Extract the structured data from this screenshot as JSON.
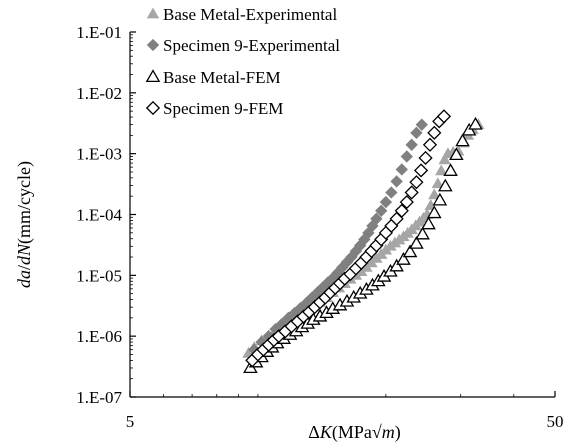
{
  "chart_data": {
    "type": "scatter",
    "title": "",
    "xlabel_parts": [
      "Δ",
      "K",
      "(MPa√",
      "m",
      ")"
    ],
    "ylabel_parts": [
      "da",
      "/",
      "dN",
      "(mm/cycle)"
    ],
    "x_scale": "log",
    "y_scale": "log",
    "xlim": [
      5,
      50
    ],
    "ylim": [
      1e-07,
      0.1
    ],
    "x_tick_values": [
      5,
      50
    ],
    "x_tick_labels": [
      "5",
      "50"
    ],
    "y_tick_values": [
      1e-07,
      1e-06,
      1e-05,
      0.0001,
      0.001,
      0.01,
      0.1
    ],
    "y_tick_labels": [
      "1.E-07",
      "1.E-06",
      "1.E-05",
      "1.E-04",
      "1.E-03",
      "1.E-02",
      "1.E-01"
    ],
    "grid": false,
    "legend_position": "top-left",
    "series": [
      {
        "name": "Base Metal-Experimental",
        "marker": "triangle-filled",
        "color": "#A6A6A6",
        "points": [
          [
            9.5,
            5.2e-07
          ],
          [
            9.8,
            6.5e-07
          ],
          [
            10.2,
            8.4e-07
          ],
          [
            10.6,
            1e-06
          ],
          [
            11.0,
            1.25e-06
          ],
          [
            11.5,
            1.5e-06
          ],
          [
            12.0,
            1.8e-06
          ],
          [
            12.5,
            2.1e-06
          ],
          [
            13.0,
            2.5e-06
          ],
          [
            13.5,
            3e-06
          ],
          [
            14.0,
            3.6e-06
          ],
          [
            14.5,
            4.3e-06
          ],
          [
            15.0,
            5.2e-06
          ],
          [
            15.5,
            6.2e-06
          ],
          [
            16.0,
            7.3e-06
          ],
          [
            16.5,
            8.6e-06
          ],
          [
            17.0,
            1e-05
          ],
          [
            17.5,
            1.15e-05
          ],
          [
            18.0,
            1.35e-05
          ],
          [
            18.5,
            1.6e-05
          ],
          [
            19.0,
            1.9e-05
          ],
          [
            19.5,
            2.2e-05
          ],
          [
            20.0,
            2.6e-05
          ],
          [
            20.5,
            3e-05
          ],
          [
            21.0,
            3.4e-05
          ],
          [
            21.5,
            3.8e-05
          ],
          [
            22.0,
            4.3e-05
          ],
          [
            22.5,
            4.9e-05
          ],
          [
            23.0,
            5.6e-05
          ],
          [
            23.5,
            6.5e-05
          ],
          [
            24.0,
            7.5e-05
          ],
          [
            24.5,
            8.6e-05
          ],
          [
            25.0,
            0.0001
          ],
          [
            25.5,
            0.00014
          ],
          [
            26.0,
            0.00021
          ],
          [
            26.5,
            0.00032
          ],
          [
            27.0,
            0.00052
          ],
          [
            27.5,
            0.00079
          ],
          [
            28.0,
            0.001
          ],
          [
            28.8,
            0.00105
          ],
          [
            29.6,
            0.0011
          ],
          [
            30.4,
            0.0015
          ],
          [
            31.2,
            0.002
          ],
          [
            32.0,
            0.0025
          ],
          [
            33.0,
            0.003
          ]
        ]
      },
      {
        "name": "Specimen 9-Experimental",
        "marker": "diamond-filled",
        "color": "#808080",
        "points": [
          [
            9.8,
            6e-07
          ],
          [
            10.2,
            8e-07
          ],
          [
            10.6,
            1e-06
          ],
          [
            11.0,
            1.3e-06
          ],
          [
            11.4,
            1.6e-06
          ],
          [
            11.8,
            2e-06
          ],
          [
            12.2,
            2.4e-06
          ],
          [
            12.6,
            2.9e-06
          ],
          [
            13.0,
            3.5e-06
          ],
          [
            13.4,
            4.3e-06
          ],
          [
            13.8,
            5.2e-06
          ],
          [
            14.2,
            6.3e-06
          ],
          [
            14.6,
            7.6e-06
          ],
          [
            15.0,
            9e-06
          ],
          [
            15.4,
            1.1e-05
          ],
          [
            15.8,
            1.35e-05
          ],
          [
            16.2,
            1.65e-05
          ],
          [
            16.6,
            2e-05
          ],
          [
            17.0,
            2.5e-05
          ],
          [
            17.4,
            3.1e-05
          ],
          [
            17.8,
            3.9e-05
          ],
          [
            18.2,
            5e-05
          ],
          [
            18.6,
            6.5e-05
          ],
          [
            19.0,
            8.5e-05
          ],
          [
            19.5,
            0.000115
          ],
          [
            20.0,
            0.00016
          ],
          [
            20.6,
            0.00023
          ],
          [
            21.2,
            0.00035
          ],
          [
            21.8,
            0.00055
          ],
          [
            22.4,
            0.0009
          ],
          [
            23.0,
            0.0014
          ],
          [
            23.6,
            0.0022
          ],
          [
            24.3,
            0.003
          ]
        ]
      },
      {
        "name": "Base Metal-FEM",
        "marker": "triangle-open",
        "color": "#000000",
        "points": [
          [
            9.6,
            3e-07
          ],
          [
            9.9,
            3.7e-07
          ],
          [
            10.2,
            4.5e-07
          ],
          [
            10.5,
            5.5e-07
          ],
          [
            10.8,
            6.5e-07
          ],
          [
            11.1,
            7.6e-07
          ],
          [
            11.5,
            9e-07
          ],
          [
            11.9,
            1.05e-06
          ],
          [
            12.3,
            1.2e-06
          ],
          [
            12.7,
            1.4e-06
          ],
          [
            13.1,
            1.6e-06
          ],
          [
            13.5,
            1.85e-06
          ],
          [
            14.0,
            2.1e-06
          ],
          [
            14.5,
            2.4e-06
          ],
          [
            15.0,
            2.8e-06
          ],
          [
            15.6,
            3.2e-06
          ],
          [
            16.2,
            3.7e-06
          ],
          [
            16.8,
            4.3e-06
          ],
          [
            17.4,
            5e-06
          ],
          [
            18.0,
            5.8e-06
          ],
          [
            18.6,
            6.8e-06
          ],
          [
            19.2,
            8e-06
          ],
          [
            19.8,
            9.5e-06
          ],
          [
            20.5,
            1.15e-05
          ],
          [
            21.2,
            1.4e-05
          ],
          [
            22.0,
            1.8e-05
          ],
          [
            22.8,
            2.4e-05
          ],
          [
            23.6,
            3.3e-05
          ],
          [
            24.4,
            4.7e-05
          ],
          [
            25.2,
            6.9e-05
          ],
          [
            26.0,
            0.000105
          ],
          [
            26.8,
            0.00017
          ],
          [
            27.6,
            0.00029
          ],
          [
            28.4,
            0.00052
          ],
          [
            29.3,
            0.00095
          ],
          [
            30.3,
            0.0016
          ],
          [
            31.4,
            0.0024
          ],
          [
            32.5,
            0.003
          ]
        ]
      },
      {
        "name": "Specimen 9-FEM",
        "marker": "diamond-open",
        "color": "#000000",
        "points": [
          [
            9.7,
            4e-07
          ],
          [
            10.0,
            5e-07
          ],
          [
            10.3,
            6e-07
          ],
          [
            10.6,
            7.2e-07
          ],
          [
            10.9,
            8.6e-07
          ],
          [
            11.2,
            1e-06
          ],
          [
            11.6,
            1.2e-06
          ],
          [
            12.0,
            1.45e-06
          ],
          [
            12.4,
            1.75e-06
          ],
          [
            12.8,
            2.1e-06
          ],
          [
            13.2,
            2.5e-06
          ],
          [
            13.6,
            3e-06
          ],
          [
            14.0,
            3.6e-06
          ],
          [
            14.4,
            4.3e-06
          ],
          [
            14.8,
            5.2e-06
          ],
          [
            15.2,
            6.2e-06
          ],
          [
            15.6,
            7.4e-06
          ],
          [
            16.0,
            8.8e-06
          ],
          [
            16.5,
            1.05e-05
          ],
          [
            17.0,
            1.3e-05
          ],
          [
            17.5,
            1.6e-05
          ],
          [
            18.0,
            2e-05
          ],
          [
            18.5,
            2.5e-05
          ],
          [
            19.0,
            3.1e-05
          ],
          [
            19.5,
            3.9e-05
          ],
          [
            20.0,
            5e-05
          ],
          [
            20.6,
            6.5e-05
          ],
          [
            21.2,
            8.5e-05
          ],
          [
            21.8,
            0.000115
          ],
          [
            22.4,
            0.00016
          ],
          [
            23.0,
            0.00023
          ],
          [
            23.6,
            0.00034
          ],
          [
            24.2,
            0.00053
          ],
          [
            24.8,
            0.00085
          ],
          [
            25.4,
            0.0014
          ],
          [
            26.0,
            0.0022
          ],
          [
            26.7,
            0.0034
          ],
          [
            27.4,
            0.0041
          ]
        ]
      }
    ]
  }
}
